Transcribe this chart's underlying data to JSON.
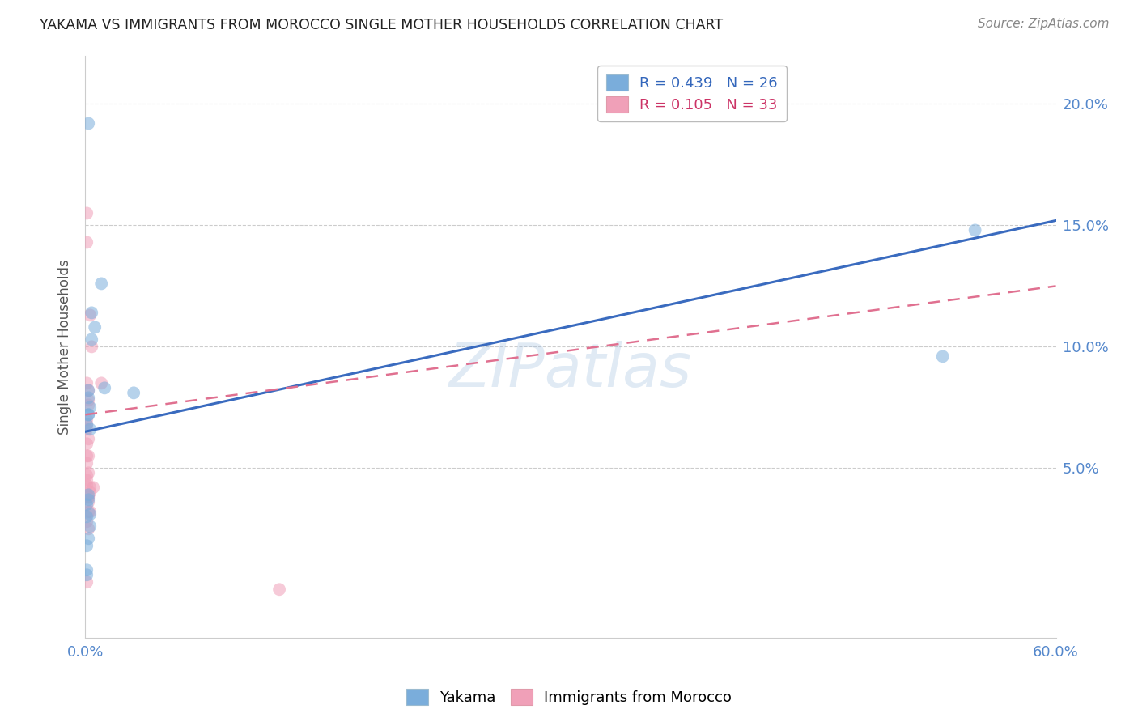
{
  "title": "YAKAMA VS IMMIGRANTS FROM MOROCCO SINGLE MOTHER HOUSEHOLDS CORRELATION CHART",
  "source": "Source: ZipAtlas.com",
  "ylabel": "Single Mother Households",
  "xlim": [
    0,
    0.6
  ],
  "ylim": [
    -0.02,
    0.22
  ],
  "xticks": [
    0.0,
    0.1,
    0.2,
    0.3,
    0.4,
    0.5,
    0.6
  ],
  "yticks": [
    0.05,
    0.1,
    0.15,
    0.2
  ],
  "ytick_labels": [
    "5.0%",
    "10.0%",
    "15.0%",
    "20.0%"
  ],
  "xtick_labels": [
    "0.0%",
    "",
    "",
    "",
    "",
    "",
    "60.0%"
  ],
  "legend_entries": [
    {
      "label": "R = 0.439   N = 26",
      "color": "#7aaddb"
    },
    {
      "label": "R = 0.105   N = 33",
      "color": "#f0a0b8"
    }
  ],
  "yakama_x": [
    0.002,
    0.002,
    0.004,
    0.006,
    0.003,
    0.002,
    0.01,
    0.004,
    0.001,
    0.002,
    0.003,
    0.003,
    0.001,
    0.002,
    0.012,
    0.03,
    0.002,
    0.002,
    0.003,
    0.002,
    0.001,
    0.001,
    0.001,
    0.001,
    0.53,
    0.55
  ],
  "yakama_y": [
    0.082,
    0.079,
    0.114,
    0.108,
    0.075,
    0.072,
    0.126,
    0.103,
    0.068,
    0.072,
    0.031,
    0.026,
    0.018,
    0.021,
    0.083,
    0.081,
    0.037,
    0.039,
    0.066,
    0.192,
    0.006,
    0.008,
    0.035,
    0.03,
    0.096,
    0.148
  ],
  "morocco_x": [
    0.001,
    0.002,
    0.003,
    0.001,
    0.001,
    0.002,
    0.001,
    0.002,
    0.001,
    0.001,
    0.002,
    0.001,
    0.002,
    0.003,
    0.01,
    0.001,
    0.001,
    0.001,
    0.002,
    0.002,
    0.003,
    0.001,
    0.002,
    0.004,
    0.001,
    0.005,
    0.002,
    0.002,
    0.003,
    0.001,
    0.002,
    0.001,
    0.12
  ],
  "morocco_y": [
    0.085,
    0.082,
    0.113,
    0.143,
    0.155,
    0.076,
    0.07,
    0.078,
    0.068,
    0.066,
    0.062,
    0.06,
    0.048,
    0.042,
    0.085,
    0.043,
    0.047,
    0.052,
    0.055,
    0.038,
    0.04,
    0.003,
    0.032,
    0.1,
    0.028,
    0.042,
    0.038,
    0.036,
    0.032,
    0.045,
    0.025,
    0.055,
    0.0
  ],
  "blue_line_x": [
    0.0,
    0.6
  ],
  "blue_line_y": [
    0.065,
    0.152
  ],
  "pink_line_x": [
    0.0,
    0.6
  ],
  "pink_line_y": [
    0.072,
    0.125
  ],
  "watermark": "ZIPatlas",
  "scatter_size": 130,
  "blue_color": "#7aaddb",
  "pink_color": "#f0a0b8",
  "blue_line_color": "#3a6bbf",
  "pink_line_color": "#e07090",
  "title_color": "#222222",
  "axis_label_color": "#5588cc",
  "grid_color": "#cccccc",
  "background_color": "#ffffff"
}
